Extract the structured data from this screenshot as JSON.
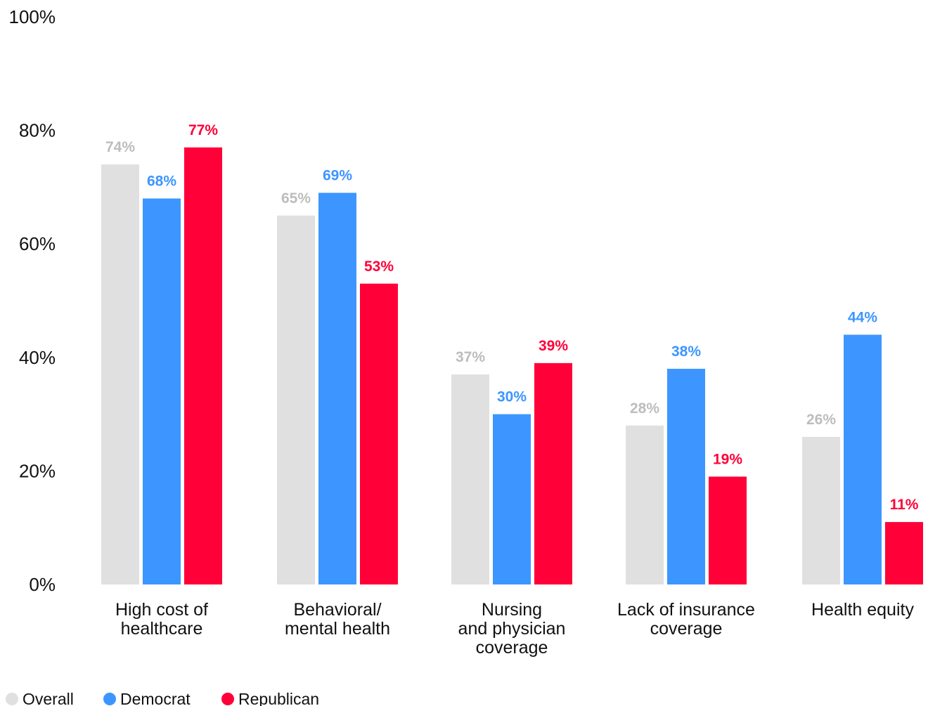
{
  "chart_data": {
    "type": "bar",
    "title": "",
    "xlabel": "",
    "ylabel": "",
    "ylim": [
      0,
      100
    ],
    "yticks": [
      "0%",
      "20%",
      "40%",
      "60%",
      "80%",
      "100%"
    ],
    "grid": false,
    "legend_position": "bottom-left",
    "categories": [
      [
        "High cost of",
        "healthcare"
      ],
      [
        "Behavioral/",
        "mental health"
      ],
      [
        "Nursing",
        "and physician",
        "coverage"
      ],
      [
        "Lack of insurance",
        "coverage"
      ],
      [
        "Health equity"
      ]
    ],
    "series": [
      {
        "name": "Overall",
        "color": "#e0e0e0",
        "label_color": "#bdbdbd",
        "values": [
          74,
          65,
          37,
          28,
          26
        ],
        "labels": [
          "74%",
          "65%",
          "37%",
          "28%",
          "26%"
        ]
      },
      {
        "name": "Democrat",
        "color": "#3d96ff",
        "label_color": "#3d96ff",
        "values": [
          68,
          69,
          30,
          38,
          44
        ],
        "labels": [
          "68%",
          "69%",
          "30%",
          "38%",
          "44%"
        ]
      },
      {
        "name": "Republican",
        "color": "#ff0038",
        "label_color": "#ff0038",
        "values": [
          77,
          53,
          39,
          19,
          11
        ],
        "labels": [
          "77%",
          "53%",
          "39%",
          "19%",
          "11%"
        ]
      }
    ]
  }
}
